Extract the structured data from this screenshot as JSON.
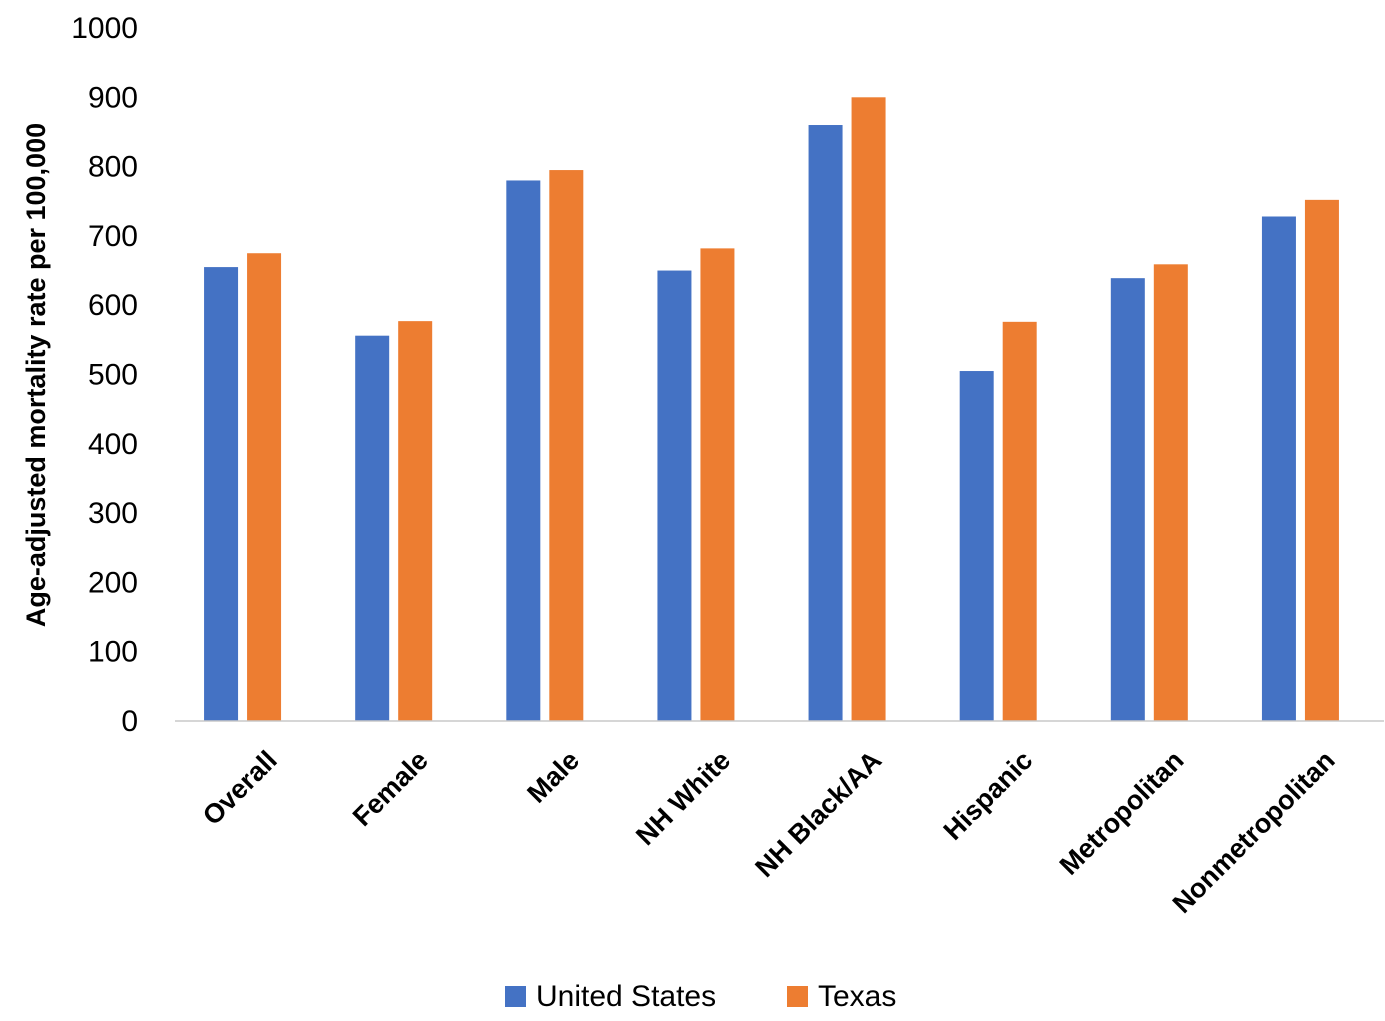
{
  "chart_data": {
    "type": "bar",
    "title": "",
    "xlabel": "",
    "ylabel": "Age-adjusted mortality rate per 100,000",
    "ylim": [
      0,
      1000
    ],
    "yticks": [
      "0",
      "100",
      "200",
      "300",
      "400",
      "500",
      "600",
      "700",
      "800",
      "900",
      "1000"
    ],
    "grid": false,
    "legend_position": "bottom",
    "categories": [
      "Overall",
      "Female",
      "Male",
      "NH White",
      "NH Black/AA",
      "Hispanic",
      "Metropolitan",
      "Nonmetropolitan"
    ],
    "series": [
      {
        "name": "United States",
        "color": "#4472C4",
        "values": [
          655,
          556,
          780,
          650,
          860,
          505,
          639,
          728
        ]
      },
      {
        "name": "Texas",
        "color": "#ED7D31",
        "values": [
          675,
          577,
          795,
          682,
          900,
          576,
          659,
          752
        ]
      }
    ]
  }
}
